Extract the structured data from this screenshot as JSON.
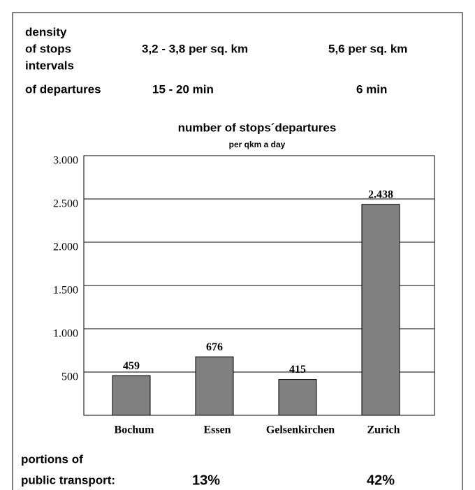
{
  "header": {
    "rows": [
      [
        "density"
      ],
      [
        "of stops",
        "3,2 - 3,8 per sq. km",
        "5,6 per sq. km"
      ],
      [
        "intervals"
      ],
      [
        "of departures",
        "15 -  20 min",
        "6 min"
      ]
    ]
  },
  "chart_data": {
    "type": "bar",
    "title": "number of stops´departures",
    "subtitle": "per qkm a day",
    "categories": [
      "Bochum",
      "Essen",
      "Gelsenkirchen",
      "Zurich"
    ],
    "values": [
      459,
      676,
      415,
      2438
    ],
    "value_labels": [
      "459",
      "676",
      "415",
      "2.438"
    ],
    "color": "#808080",
    "ylim": [
      0,
      3000
    ],
    "yticks": [
      500,
      {
        "value": 1000,
        "label": "1.000"
      },
      {
        "value": 1500,
        "label": "1.500"
      },
      {
        "value": 2000,
        "label": "2.000"
      },
      {
        "value": 2500,
        "label": "2.500"
      },
      {
        "value": 3000,
        "label": "3.000"
      }
    ],
    "grid": true
  },
  "footer": {
    "rows": [
      [
        "portions of"
      ],
      [
        "public transport:",
        "13%",
        "42%"
      ]
    ]
  }
}
